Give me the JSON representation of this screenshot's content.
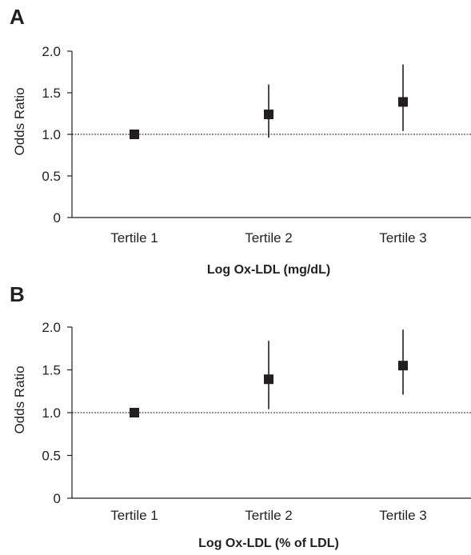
{
  "chart_data": [
    {
      "type": "scatter",
      "panel": "A",
      "categories": [
        "Tertile 1",
        "Tertile 2",
        "Tertile 3"
      ],
      "values": [
        1.0,
        1.24,
        1.39
      ],
      "ci_low": [
        1.0,
        0.96,
        1.04
      ],
      "ci_high": [
        1.0,
        1.6,
        1.84
      ],
      "xlabel": "Log Ox-LDL (mg/dL)",
      "ylabel": "Odds Ratio",
      "ylim": [
        0,
        2.0
      ],
      "yticks": [
        "0",
        "0.5",
        "1.0",
        "1.5",
        "2.0"
      ],
      "reference_line": 1.0
    },
    {
      "type": "scatter",
      "panel": "B",
      "categories": [
        "Tertile 1",
        "Tertile 2",
        "Tertile 3"
      ],
      "values": [
        1.0,
        1.39,
        1.55
      ],
      "ci_low": [
        1.0,
        1.04,
        1.21
      ],
      "ci_high": [
        1.0,
        1.84,
        1.97
      ],
      "xlabel": "Log Ox-LDL (% of LDL)",
      "ylabel": "Odds Ratio",
      "ylim": [
        0,
        2.0
      ],
      "yticks": [
        "0",
        "0.5",
        "1.0",
        "1.5",
        "2.0"
      ],
      "reference_line": 1.0
    }
  ]
}
